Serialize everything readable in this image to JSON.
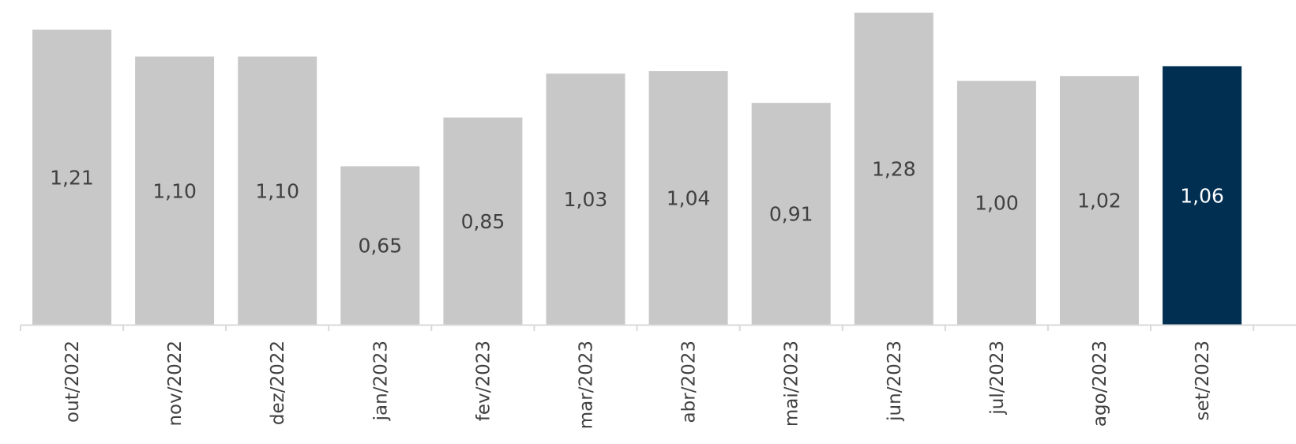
{
  "chart_data": {
    "type": "bar",
    "categories": [
      "out/2022",
      "nov/2022",
      "dez/2022",
      "jan/2023",
      "fev/2023",
      "mar/2023",
      "abr/2023",
      "mai/2023",
      "jun/2023",
      "jul/2023",
      "ago/2023",
      "set/2023"
    ],
    "values": [
      1.21,
      1.1,
      1.1,
      0.65,
      0.85,
      1.03,
      1.04,
      0.91,
      1.28,
      1.0,
      1.02,
      1.06
    ],
    "value_labels": [
      "1,21",
      "1,10",
      "1,10",
      "0,65",
      "0,85",
      "1,03",
      "1,04",
      "0,91",
      "1,28",
      "1,00",
      "1,02",
      "1,06"
    ],
    "highlight_index": 11,
    "ylim": [
      0,
      1.3
    ],
    "grid": false,
    "colors": {
      "bar": "#c8c8c8",
      "highlight": "#002f52",
      "axis": "#d9d9d9",
      "label": "#404040",
      "highlight_label": "#ffffff"
    }
  }
}
